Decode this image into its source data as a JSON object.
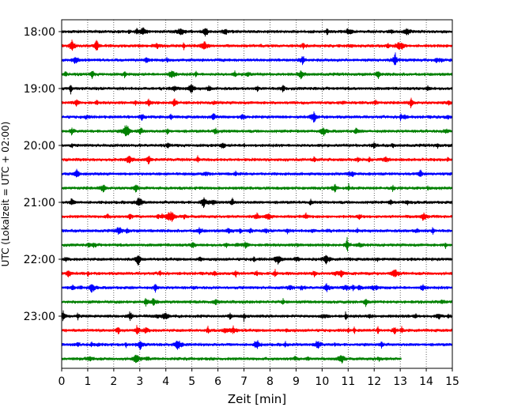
{
  "chart_data": {
    "type": "line",
    "subtype": "helicorder-seismogram",
    "title": "",
    "xlabel": "Zeit  [min]",
    "ylabel": "UTC (Lokalzeit = UTC + 02:00)",
    "xlim": [
      0,
      15
    ],
    "x_ticks": [
      0,
      1,
      2,
      3,
      4,
      5,
      6,
      7,
      8,
      9,
      10,
      11,
      12,
      13,
      14,
      15
    ],
    "y_ticks": [
      "18:00",
      "19:00",
      "20:00",
      "21:00",
      "22:00",
      "23:00"
    ],
    "trace_interval_minutes": 15,
    "grid": "vertical dotted lines at each minute",
    "color_cycle": [
      "#000000",
      "#ff0000",
      "#0000ff",
      "#008000"
    ],
    "last_trace_end_minute": 13.05,
    "traces": [
      {
        "start": "18:00",
        "color": "#000000"
      },
      {
        "start": "18:15",
        "color": "#ff0000"
      },
      {
        "start": "18:30",
        "color": "#0000ff"
      },
      {
        "start": "18:45",
        "color": "#008000"
      },
      {
        "start": "19:00",
        "color": "#000000"
      },
      {
        "start": "19:15",
        "color": "#ff0000"
      },
      {
        "start": "19:30",
        "color": "#0000ff"
      },
      {
        "start": "19:45",
        "color": "#008000"
      },
      {
        "start": "20:00",
        "color": "#000000"
      },
      {
        "start": "20:15",
        "color": "#ff0000"
      },
      {
        "start": "20:30",
        "color": "#0000ff"
      },
      {
        "start": "20:45",
        "color": "#008000"
      },
      {
        "start": "21:00",
        "color": "#000000"
      },
      {
        "start": "21:15",
        "color": "#ff0000"
      },
      {
        "start": "21:30",
        "color": "#0000ff"
      },
      {
        "start": "21:45",
        "color": "#008000"
      },
      {
        "start": "22:00",
        "color": "#000000"
      },
      {
        "start": "22:15",
        "color": "#ff0000"
      },
      {
        "start": "22:30",
        "color": "#0000ff"
      },
      {
        "start": "22:45",
        "color": "#008000"
      },
      {
        "start": "23:00",
        "color": "#000000"
      },
      {
        "start": "23:15",
        "color": "#ff0000"
      },
      {
        "start": "23:30",
        "color": "#0000ff"
      },
      {
        "start": "23:45",
        "color": "#008000"
      }
    ]
  }
}
